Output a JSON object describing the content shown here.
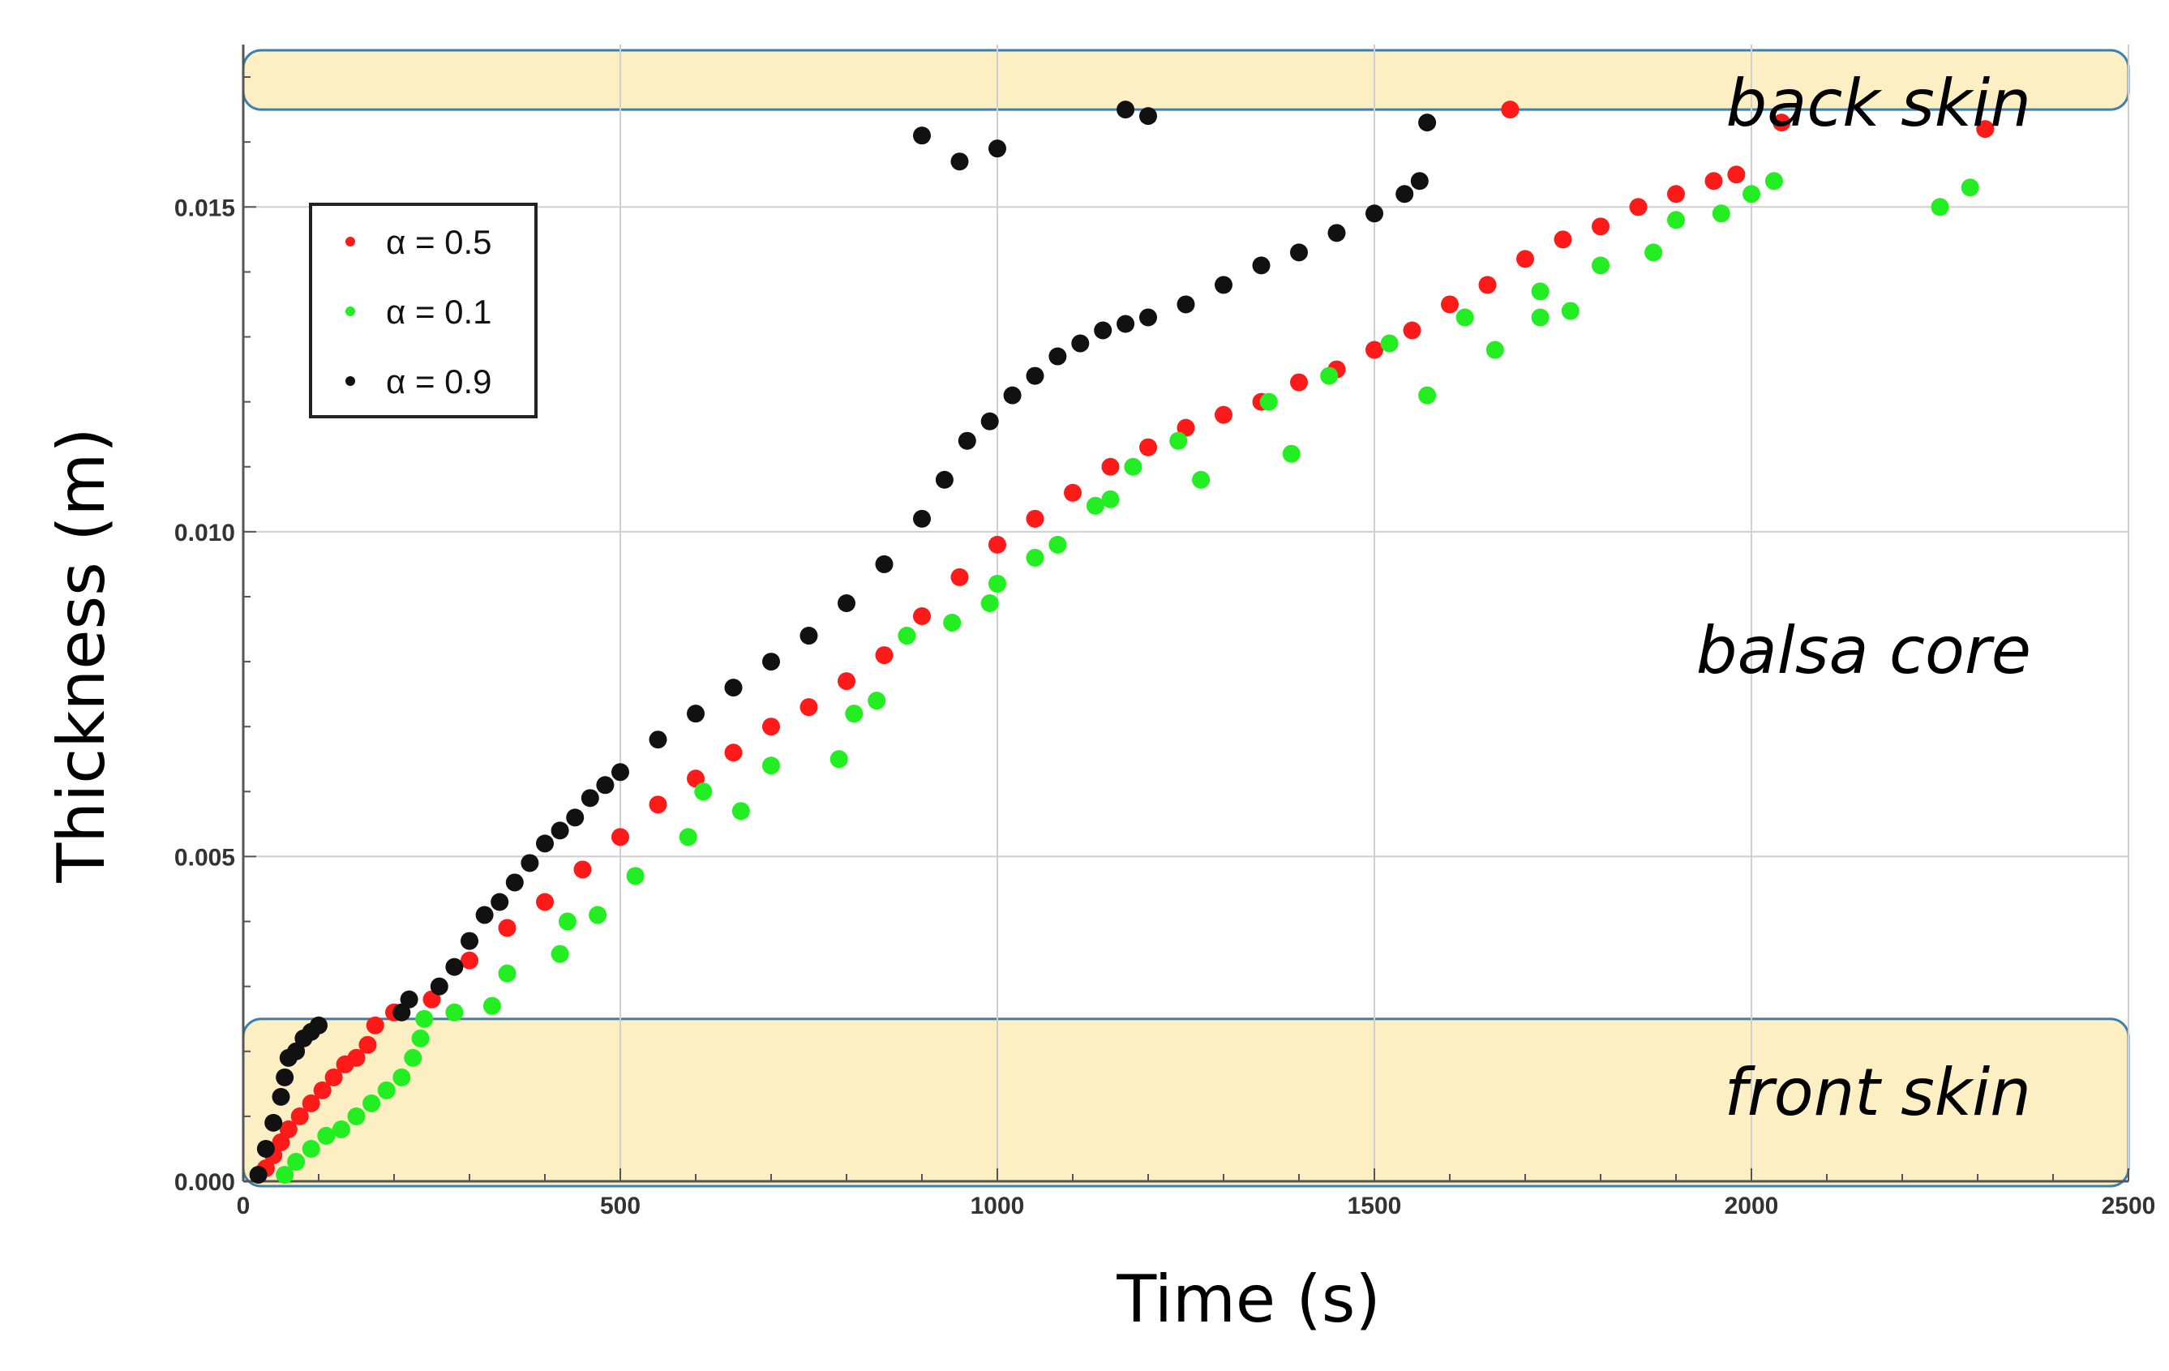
{
  "chart_data": {
    "type": "scatter",
    "xlabel": "Time (s)",
    "ylabel": "Thickness (m)",
    "xlim": [
      0,
      2500
    ],
    "ylim": [
      0,
      0.0175
    ],
    "xticks": [
      "0",
      "500",
      "1000",
      "1500",
      "2000",
      "2500"
    ],
    "yticks": [
      "0.000",
      "0.005",
      "0.010",
      "0.015"
    ],
    "grid": true,
    "legend_position": "top-left",
    "regions": [
      {
        "label": "back skin",
        "ymin": 0.0165,
        "ymax": 0.0175,
        "color": "#fcefc4"
      },
      {
        "label": "balsa core",
        "ymin": 0.0025,
        "ymax": 0.0165,
        "color": "#ffffff"
      },
      {
        "label": "front skin",
        "ymin": 0.0,
        "ymax": 0.0025,
        "color": "#fcefc4"
      }
    ],
    "series": [
      {
        "name": "α = 0.5",
        "color": "#ff1a1a",
        "x": [
          30,
          40,
          50,
          60,
          75,
          90,
          105,
          120,
          135,
          150,
          165,
          175,
          200,
          250,
          300,
          350,
          400,
          450,
          500,
          550,
          600,
          650,
          700,
          750,
          800,
          850,
          900,
          950,
          1000,
          1050,
          1100,
          1150,
          1200,
          1250,
          1300,
          1350,
          1400,
          1450,
          1500,
          1550,
          1600,
          1650,
          1700,
          1750,
          1800,
          1850,
          1900,
          1950,
          1980,
          2040,
          2310,
          1680
        ],
        "y": [
          0.0002,
          0.0004,
          0.0006,
          0.0008,
          0.001,
          0.0012,
          0.0014,
          0.0016,
          0.0018,
          0.0019,
          0.0021,
          0.0024,
          0.0026,
          0.0028,
          0.0034,
          0.0039,
          0.0043,
          0.0048,
          0.0053,
          0.0058,
          0.0062,
          0.0066,
          0.007,
          0.0073,
          0.0077,
          0.0081,
          0.0087,
          0.0093,
          0.0098,
          0.0102,
          0.0106,
          0.011,
          0.0113,
          0.0116,
          0.0118,
          0.012,
          0.0123,
          0.0125,
          0.0128,
          0.0131,
          0.0135,
          0.0138,
          0.0142,
          0.0145,
          0.0147,
          0.015,
          0.0152,
          0.0154,
          0.0155,
          0.0163,
          0.0162,
          0.0165
        ]
      },
      {
        "name": "α = 0.1",
        "color": "#22ee22",
        "x": [
          55,
          70,
          90,
          110,
          130,
          150,
          170,
          190,
          210,
          225,
          235,
          240,
          280,
          330,
          350,
          420,
          430,
          470,
          520,
          590,
          610,
          660,
          700,
          790,
          810,
          840,
          880,
          940,
          990,
          1000,
          1050,
          1080,
          1130,
          1150,
          1180,
          1240,
          1270,
          1360,
          1390,
          1440,
          1520,
          1570,
          1620,
          1660,
          1720,
          1760,
          1800,
          1870,
          1900,
          1960,
          2000,
          2030,
          2250,
          2290,
          1720
        ],
        "y": [
          0.0001,
          0.0003,
          0.0005,
          0.0007,
          0.0008,
          0.001,
          0.0012,
          0.0014,
          0.0016,
          0.0019,
          0.0022,
          0.0025,
          0.0026,
          0.0027,
          0.0032,
          0.0035,
          0.004,
          0.0041,
          0.0047,
          0.0053,
          0.006,
          0.0057,
          0.0064,
          0.0065,
          0.0072,
          0.0074,
          0.0084,
          0.0086,
          0.0089,
          0.0092,
          0.0096,
          0.0098,
          0.0104,
          0.0105,
          0.011,
          0.0114,
          0.0108,
          0.012,
          0.0112,
          0.0124,
          0.0129,
          0.0121,
          0.0133,
          0.0128,
          0.0133,
          0.0134,
          0.0141,
          0.0143,
          0.0148,
          0.0149,
          0.0152,
          0.0154,
          0.015,
          0.0153,
          0.0137
        ]
      },
      {
        "name": "α = 0.9",
        "color": "#111111",
        "x": [
          20,
          30,
          40,
          50,
          55,
          60,
          70,
          80,
          90,
          100,
          210,
          220,
          260,
          280,
          300,
          320,
          340,
          360,
          380,
          400,
          420,
          440,
          460,
          480,
          500,
          550,
          600,
          650,
          700,
          750,
          800,
          850,
          900,
          930,
          960,
          990,
          1020,
          1050,
          1080,
          1110,
          1140,
          1170,
          1200,
          1250,
          1300,
          1350,
          1400,
          1450,
          1500,
          1540,
          1560,
          900,
          950,
          1000,
          1170,
          1200,
          1570
        ],
        "y": [
          0.0001,
          0.0005,
          0.0009,
          0.0013,
          0.0016,
          0.0019,
          0.002,
          0.0022,
          0.0023,
          0.0024,
          0.0026,
          0.0028,
          0.003,
          0.0033,
          0.0037,
          0.0041,
          0.0043,
          0.0046,
          0.0049,
          0.0052,
          0.0054,
          0.0056,
          0.0059,
          0.0061,
          0.0063,
          0.0068,
          0.0072,
          0.0076,
          0.008,
          0.0084,
          0.0089,
          0.0095,
          0.0102,
          0.0108,
          0.0114,
          0.0117,
          0.0121,
          0.0124,
          0.0127,
          0.0129,
          0.0131,
          0.0132,
          0.0133,
          0.0135,
          0.0138,
          0.0141,
          0.0143,
          0.0146,
          0.0149,
          0.0152,
          0.0154,
          0.0161,
          0.0157,
          0.0159,
          0.0165,
          0.0164,
          0.0163
        ]
      }
    ]
  }
}
